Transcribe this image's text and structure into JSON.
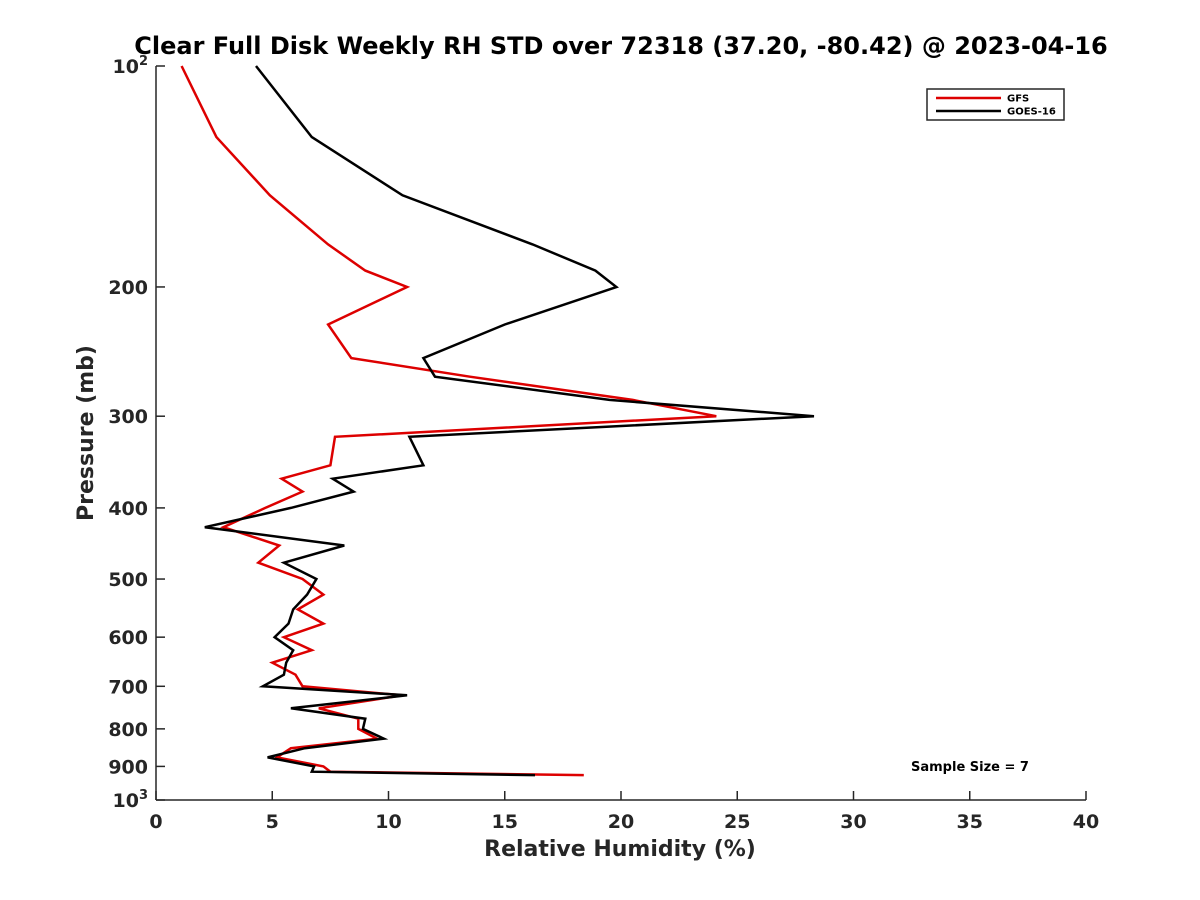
{
  "chart_data": {
    "type": "line",
    "title": "Clear Full Disk Weekly RH STD over 72318 (37.20, -80.42) @ 2023-04-16",
    "xlabel": "Relative Humidity (%)",
    "ylabel": "Pressure (mb)",
    "xlim": [
      0,
      40
    ],
    "ylim": [
      100,
      1000
    ],
    "yscale": "log",
    "y_reversed": true,
    "grid": false,
    "legend_position": "top-right",
    "x_ticks": [
      0,
      5,
      10,
      15,
      20,
      25,
      30,
      35,
      40
    ],
    "x_tick_labels": [
      "0",
      "5",
      "10",
      "15",
      "20",
      "25",
      "30",
      "35",
      "40"
    ],
    "y_ticks": [
      100,
      200,
      300,
      400,
      500,
      600,
      700,
      800,
      900,
      1000
    ],
    "y_tick_labels": [
      {
        "base": "10",
        "sup": "2"
      },
      {
        "base": "200"
      },
      {
        "base": "300"
      },
      {
        "base": "400"
      },
      {
        "base": "500"
      },
      {
        "base": "600"
      },
      {
        "base": "700"
      },
      {
        "base": "800"
      },
      {
        "base": "900"
      },
      {
        "base": "10",
        "sup": "3"
      }
    ],
    "annotation": "Sample Size = 7",
    "series": [
      {
        "name": "GFS",
        "color": "#dd0000",
        "points": [
          [
            1.1,
            100
          ],
          [
            2.6,
            125
          ],
          [
            4.9,
            150
          ],
          [
            7.4,
            175
          ],
          [
            9.0,
            190
          ],
          [
            10.8,
            200
          ],
          [
            7.4,
            225
          ],
          [
            8.4,
            250
          ],
          [
            13.5,
            265
          ],
          [
            20.5,
            285
          ],
          [
            24.1,
            300
          ],
          [
            7.7,
            320
          ],
          [
            7.5,
            350
          ],
          [
            5.4,
            365
          ],
          [
            6.3,
            380
          ],
          [
            4.7,
            400
          ],
          [
            2.9,
            425
          ],
          [
            5.3,
            450
          ],
          [
            4.4,
            475
          ],
          [
            6.3,
            500
          ],
          [
            7.2,
            525
          ],
          [
            6.1,
            550
          ],
          [
            7.2,
            575
          ],
          [
            5.5,
            600
          ],
          [
            6.7,
            625
          ],
          [
            5.0,
            650
          ],
          [
            6.0,
            675
          ],
          [
            6.3,
            700
          ],
          [
            10.6,
            720
          ],
          [
            7.0,
            750
          ],
          [
            8.7,
            775
          ],
          [
            8.7,
            800
          ],
          [
            9.5,
            825
          ],
          [
            5.8,
            850
          ],
          [
            5.2,
            875
          ],
          [
            7.2,
            900
          ],
          [
            7.5,
            915
          ],
          [
            18.4,
            925
          ]
        ]
      },
      {
        "name": "GOES-16",
        "color": "#000000",
        "points": [
          [
            4.3,
            100
          ],
          [
            6.7,
            125
          ],
          [
            10.6,
            150
          ],
          [
            16.2,
            175
          ],
          [
            18.9,
            190
          ],
          [
            19.8,
            200
          ],
          [
            15.0,
            225
          ],
          [
            11.5,
            250
          ],
          [
            12.0,
            265
          ],
          [
            19.5,
            285
          ],
          [
            28.3,
            300
          ],
          [
            10.9,
            320
          ],
          [
            11.5,
            350
          ],
          [
            7.6,
            365
          ],
          [
            8.5,
            380
          ],
          [
            5.8,
            400
          ],
          [
            2.1,
            425
          ],
          [
            8.1,
            450
          ],
          [
            5.5,
            475
          ],
          [
            6.9,
            500
          ],
          [
            6.5,
            525
          ],
          [
            5.9,
            550
          ],
          [
            5.7,
            575
          ],
          [
            5.1,
            600
          ],
          [
            5.9,
            625
          ],
          [
            5.6,
            650
          ],
          [
            5.5,
            675
          ],
          [
            4.6,
            700
          ],
          [
            10.8,
            720
          ],
          [
            5.8,
            750
          ],
          [
            9.0,
            775
          ],
          [
            8.9,
            800
          ],
          [
            9.8,
            825
          ],
          [
            6.4,
            850
          ],
          [
            4.8,
            875
          ],
          [
            6.8,
            900
          ],
          [
            6.7,
            915
          ],
          [
            16.3,
            925
          ]
        ]
      }
    ]
  }
}
